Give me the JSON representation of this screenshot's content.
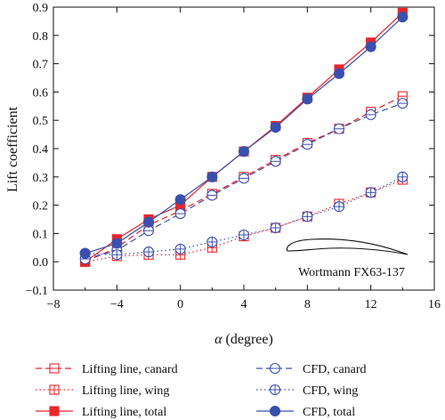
{
  "chart_data": {
    "type": "line",
    "xlabel_symbol": "α",
    "xlabel_unit": "(degree)",
    "ylabel": "Lift coefficient",
    "xlim": [
      -8,
      16
    ],
    "ylim": [
      -0.1,
      0.9
    ],
    "xticks": [
      -8,
      -4,
      0,
      4,
      8,
      12,
      16
    ],
    "yticks": [
      -0.1,
      0.0,
      0.1,
      0.2,
      0.3,
      0.4,
      0.5,
      0.6,
      0.7,
      0.8,
      0.9
    ],
    "grid": false,
    "legend_position": "bottom",
    "colors": {
      "red": "#e8262a",
      "blue": "#3a4fae"
    },
    "x": [
      -6,
      -4,
      -2,
      0,
      2,
      4,
      6,
      8,
      10,
      12,
      14
    ],
    "series": [
      {
        "name": "Lifting line, canard",
        "color": "#e8262a",
        "dash": "dash",
        "marker": "square-minus",
        "values": [
          0.0,
          0.05,
          0.13,
          0.18,
          0.24,
          0.3,
          0.36,
          0.42,
          0.47,
          0.53,
          0.585
        ]
      },
      {
        "name": "Lifting line, wing",
        "color": "#e8262a",
        "dash": "dot",
        "marker": "square-plus",
        "values": [
          0.0,
          0.02,
          0.025,
          0.025,
          0.05,
          0.09,
          0.12,
          0.16,
          0.205,
          0.245,
          0.29
        ]
      },
      {
        "name": "Lifting line, total",
        "color": "#e8262a",
        "dash": "solid",
        "marker": "square-filled",
        "values": [
          0.0,
          0.08,
          0.15,
          0.2,
          0.3,
          0.39,
          0.48,
          0.58,
          0.68,
          0.775,
          0.88
        ]
      },
      {
        "name": "CFD, canard",
        "color": "#3a4fae",
        "dash": "dash",
        "marker": "circle-minus",
        "values": [
          0.01,
          0.04,
          0.11,
          0.17,
          0.235,
          0.295,
          0.355,
          0.415,
          0.47,
          0.52,
          0.56
        ]
      },
      {
        "name": "CFD, wing",
        "color": "#3a4fae",
        "dash": "dot",
        "marker": "circle-plus",
        "values": [
          0.03,
          0.025,
          0.035,
          0.045,
          0.07,
          0.095,
          0.12,
          0.16,
          0.195,
          0.245,
          0.3
        ]
      },
      {
        "name": "CFD, total",
        "color": "#3a4fae",
        "dash": "solid",
        "marker": "circle-filled",
        "values": [
          0.03,
          0.065,
          0.14,
          0.22,
          0.3,
          0.39,
          0.475,
          0.575,
          0.665,
          0.76,
          0.865
        ]
      }
    ],
    "annotation": {
      "text": "Wortmann FX63-137"
    }
  }
}
